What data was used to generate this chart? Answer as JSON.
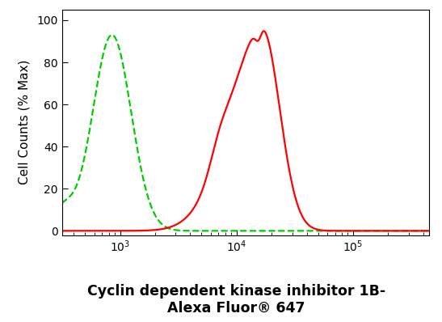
{
  "title_line1": "Cyclin dependent kinase inhibitor 1B-",
  "title_line2": "Alexa Fluor® 647",
  "ylabel": "Cell Counts (% Max)",
  "xlim_log": [
    2.5,
    5.65
  ],
  "ylim": [
    -2,
    105
  ],
  "background_color": "#ffffff",
  "plot_bg_color": "#ffffff",
  "green_color": "#00cc00",
  "red_color": "#ff0000",
  "green_peak_log": 2.93,
  "red_peak_log": 4.22,
  "title_fontsize": 12.5,
  "axis_label_fontsize": 11,
  "tick_fontsize": 10
}
